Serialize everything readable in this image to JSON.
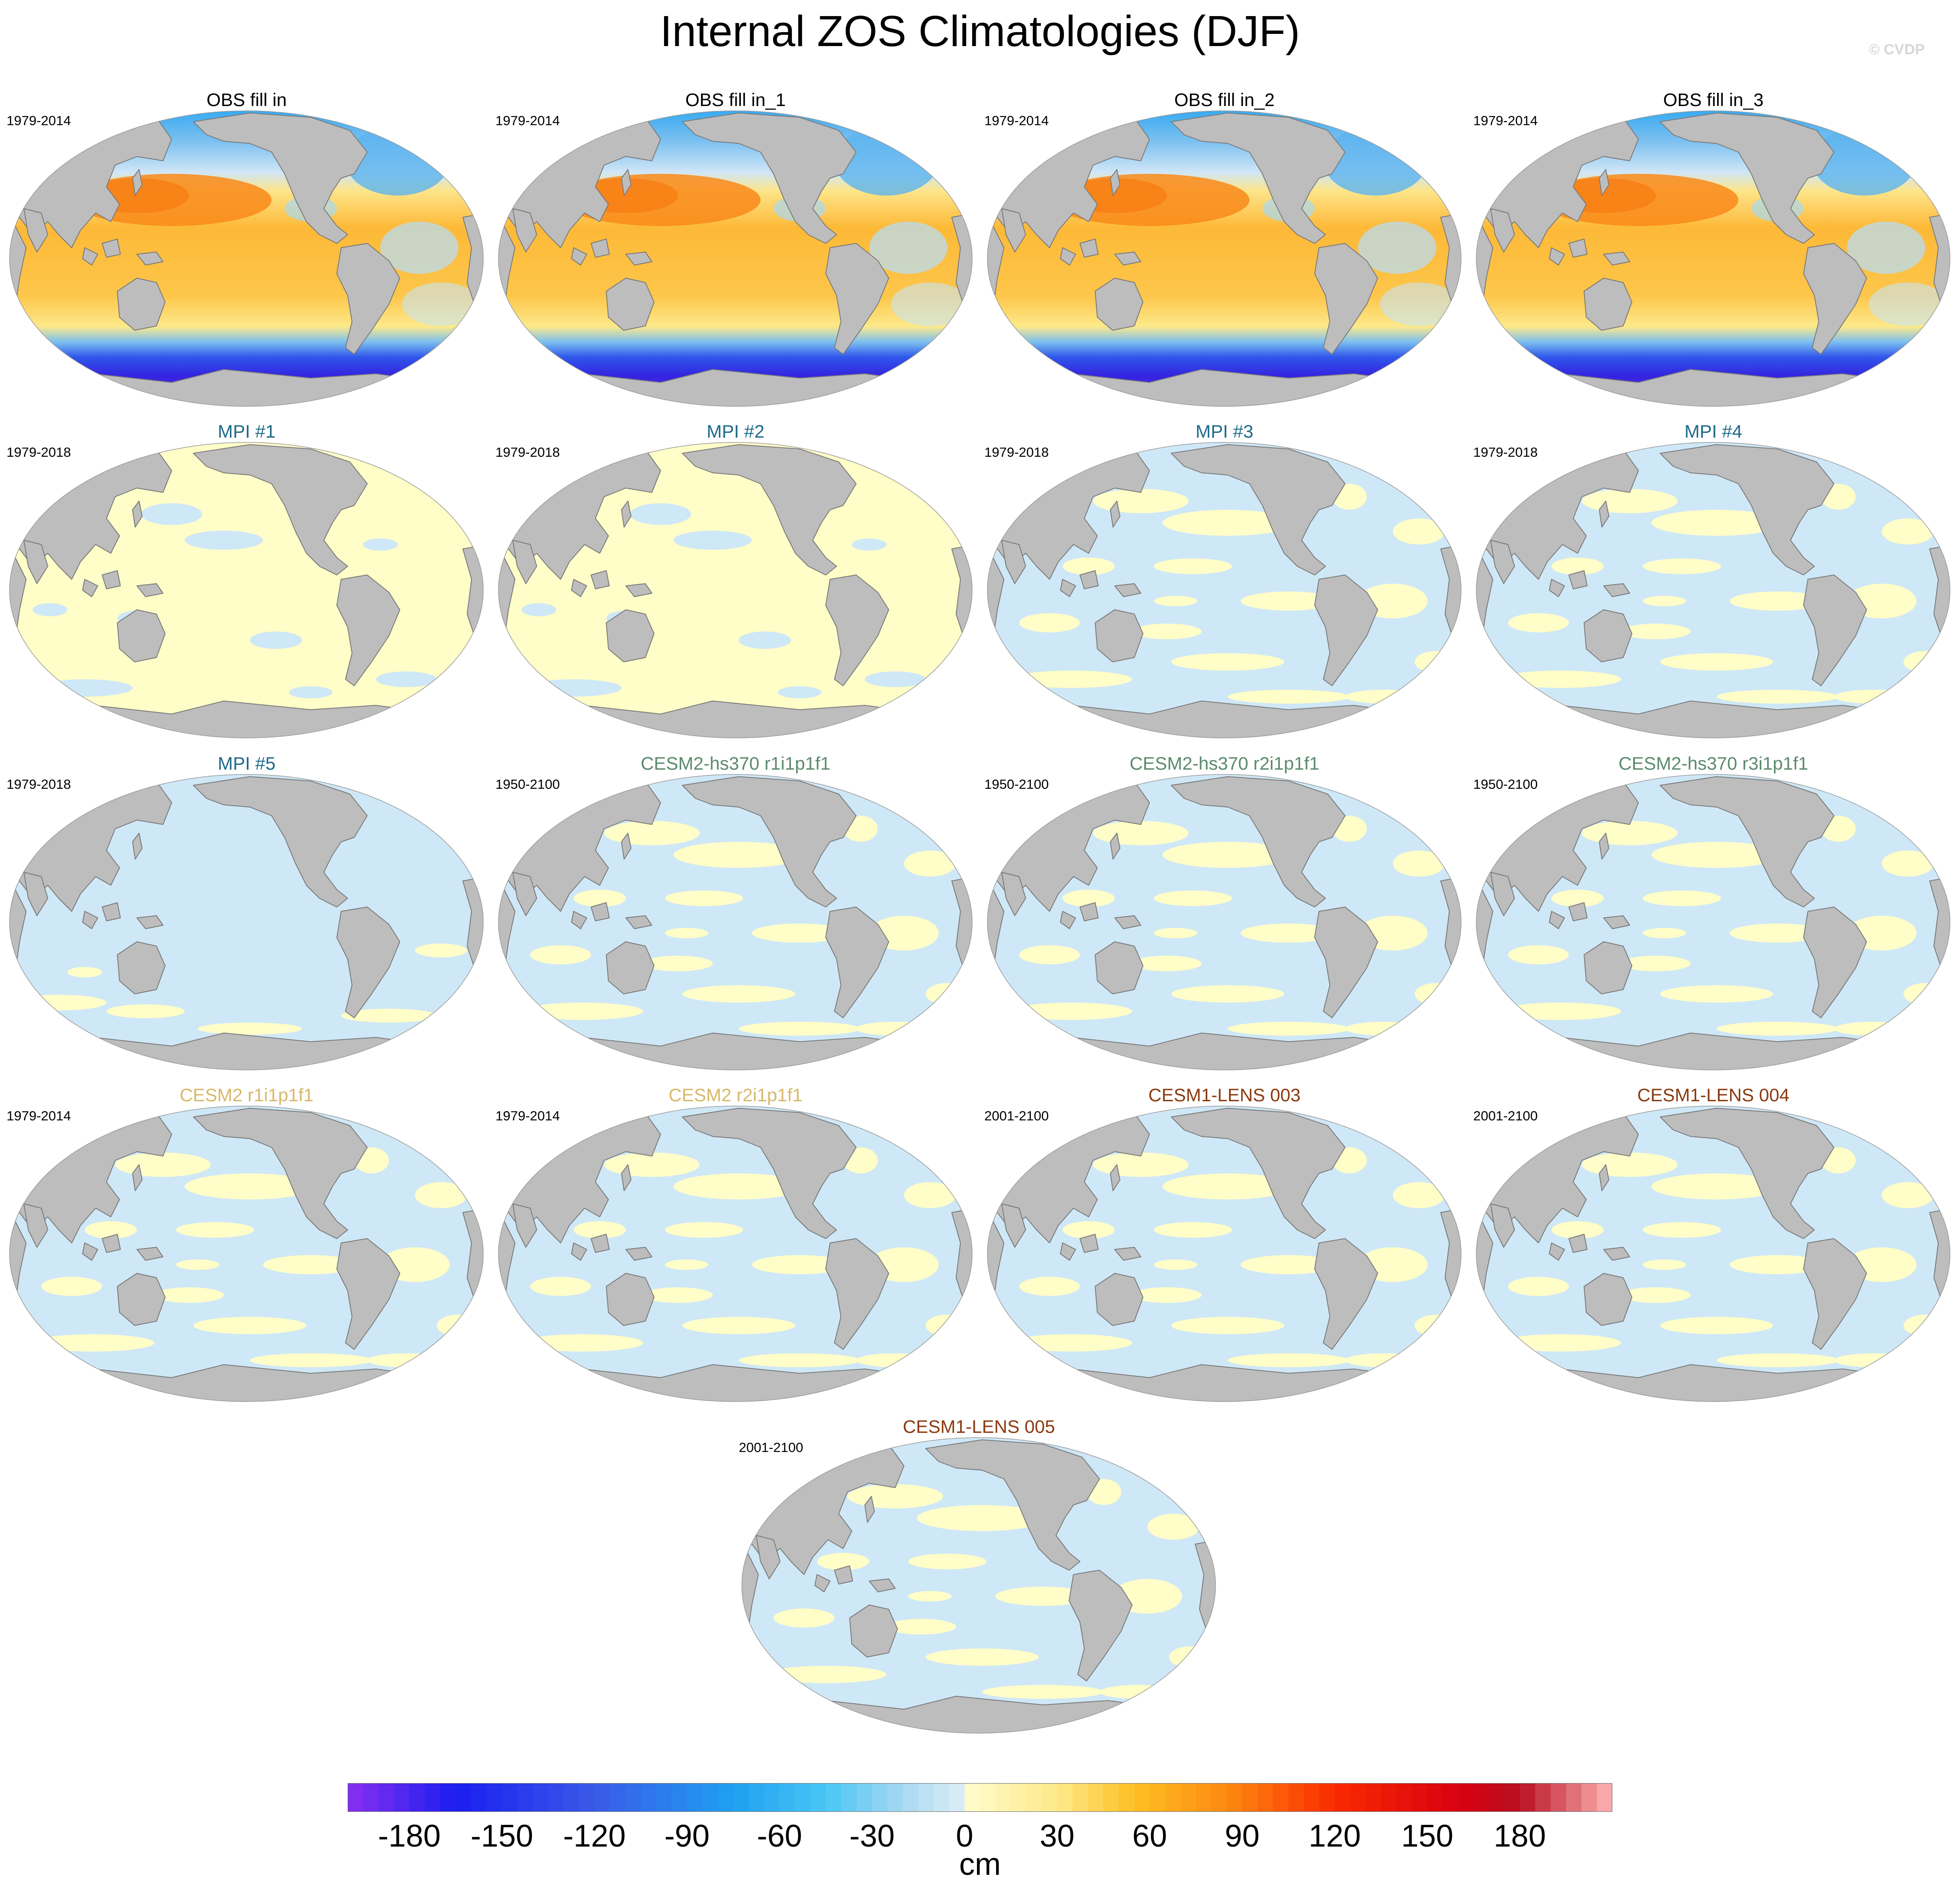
{
  "title": "Internal ZOS Climatologies (DJF)",
  "copyright": "© CVDP",
  "panels": [
    {
      "title": "OBS fill in",
      "period": "1979-2014",
      "title_color": "#000000",
      "field": "obs"
    },
    {
      "title": "OBS fill in_1",
      "period": "1979-2014",
      "title_color": "#000000",
      "field": "obs"
    },
    {
      "title": "OBS fill in_2",
      "period": "1979-2014",
      "title_color": "#000000",
      "field": "obs"
    },
    {
      "title": "OBS fill in_3",
      "period": "1979-2014",
      "title_color": "#000000",
      "field": "obs"
    },
    {
      "title": "MPI #1",
      "period": "1979-2018",
      "title_color": "#1f6a8a",
      "field": "anom_yellow"
    },
    {
      "title": "MPI #2",
      "period": "1979-2018",
      "title_color": "#1f6a8a",
      "field": "anom_yellow"
    },
    {
      "title": "MPI #3",
      "period": "1979-2018",
      "title_color": "#1f6a8a",
      "field": "anom_mixed"
    },
    {
      "title": "MPI #4",
      "period": "1979-2018",
      "title_color": "#1f6a8a",
      "field": "anom_mixed"
    },
    {
      "title": "MPI #5",
      "period": "1979-2018",
      "title_color": "#1f6a8a",
      "field": "anom_blue"
    },
    {
      "title": "CESM2-hs370 r1i1p1f1",
      "period": "1950-2100",
      "title_color": "#5c8a6e",
      "field": "anom_mixed"
    },
    {
      "title": "CESM2-hs370 r2i1p1f1",
      "period": "1950-2100",
      "title_color": "#5c8a6e",
      "field": "anom_mixed"
    },
    {
      "title": "CESM2-hs370 r3i1p1f1",
      "period": "1950-2100",
      "title_color": "#5c8a6e",
      "field": "anom_mixed"
    },
    {
      "title": "CESM2 r1i1p1f1",
      "period": "1979-2014",
      "title_color": "#d8b86a",
      "field": "anom_mixed"
    },
    {
      "title": "CESM2 r2i1p1f1",
      "period": "1979-2014",
      "title_color": "#d8b86a",
      "field": "anom_mixed"
    },
    {
      "title": "CESM1-LENS 003",
      "period": "2001-2100",
      "title_color": "#8b3a10",
      "field": "anom_mixed"
    },
    {
      "title": "CESM1-LENS 004",
      "period": "2001-2100",
      "title_color": "#8b3a10",
      "field": "anom_mixed"
    },
    {
      "title": "CESM1-LENS 005",
      "period": "2001-2100",
      "title_color": "#8b3a10",
      "field": "anom_mixed"
    }
  ],
  "colorbar": {
    "units": "cm",
    "tick_labels": [
      "-180",
      "-150",
      "-120",
      "-90",
      "-60",
      "-30",
      "0",
      "30",
      "60",
      "90",
      "120",
      "150",
      "180"
    ],
    "min": -200,
    "max": 210,
    "step": 5,
    "stops": [
      {
        "v": -200,
        "c": "#8a2ff0"
      },
      {
        "v": -165,
        "c": "#1a1ef0"
      },
      {
        "v": -120,
        "c": "#3a5ae8"
      },
      {
        "v": -75,
        "c": "#1ea0f0"
      },
      {
        "v": -45,
        "c": "#48c6f5"
      },
      {
        "v": -20,
        "c": "#a8d8f2"
      },
      {
        "v": -2,
        "c": "#d8ecf6"
      },
      {
        "v": 2,
        "c": "#fffac8"
      },
      {
        "v": 30,
        "c": "#fde98a"
      },
      {
        "v": 55,
        "c": "#fdbf22"
      },
      {
        "v": 85,
        "c": "#fd8a10"
      },
      {
        "v": 120,
        "c": "#fa2a00"
      },
      {
        "v": 160,
        "c": "#d80010"
      },
      {
        "v": 180,
        "c": "#b81020"
      },
      {
        "v": 210,
        "c": "#ffb6b6"
      }
    ]
  },
  "colors": {
    "land": "#bdbdbd",
    "coast": "#7a7a7a",
    "anom_positive": "#fffdc8",
    "anom_negative": "#cfe8f7",
    "obs_equatorial": "#fdb938",
    "obs_warm_pool": "#f98a1a",
    "obs_north": "#7cc0f0",
    "obs_south_deep": "#3424e0"
  }
}
